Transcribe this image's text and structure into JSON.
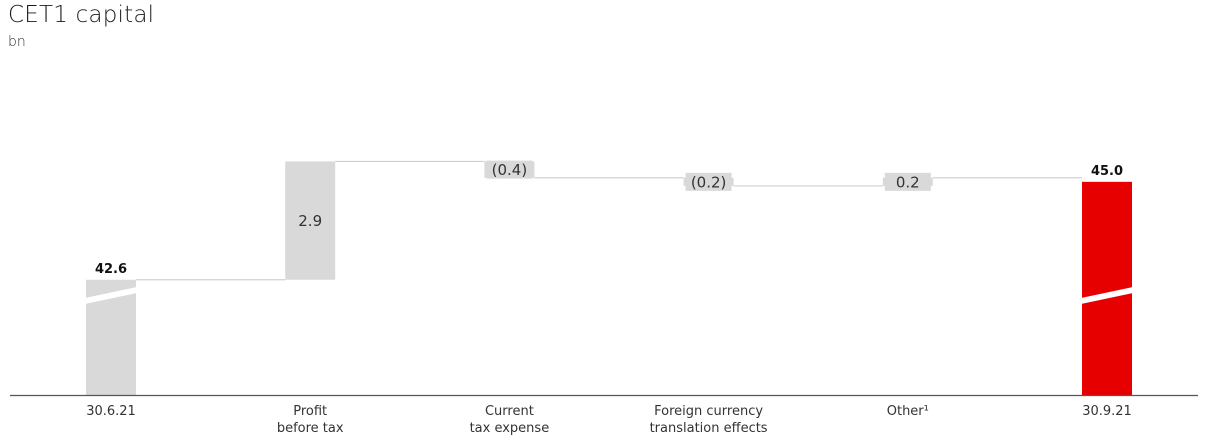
{
  "title": "CET1 capital",
  "unit": "bn",
  "colors": {
    "bar": "#d9d9d9",
    "total_end": "#e60000",
    "connector": "#d0d0d0",
    "axis": "#555555"
  },
  "chart_data": {
    "type": "bar",
    "subtype": "waterfall",
    "title": "CET1 capital",
    "ylabel": "bn",
    "axis_break": true,
    "categories": [
      [
        "30.6.21"
      ],
      [
        "Profit",
        "before tax"
      ],
      [
        "Current",
        "tax expense"
      ],
      [
        "Foreign currency",
        "translation effects"
      ],
      [
        "Other¹"
      ],
      [
        "30.9.21"
      ]
    ],
    "steps": [
      {
        "kind": "total",
        "value": 42.6,
        "label": "42.6"
      },
      {
        "kind": "delta",
        "value": 2.9,
        "label": "2.9"
      },
      {
        "kind": "delta",
        "value": -0.4,
        "label": "(0.4)"
      },
      {
        "kind": "delta",
        "value": -0.2,
        "label": "(0.2)"
      },
      {
        "kind": "delta",
        "value": 0.2,
        "label": "0.2"
      },
      {
        "kind": "total",
        "value": 45.0,
        "label": "45.0"
      }
    ]
  }
}
